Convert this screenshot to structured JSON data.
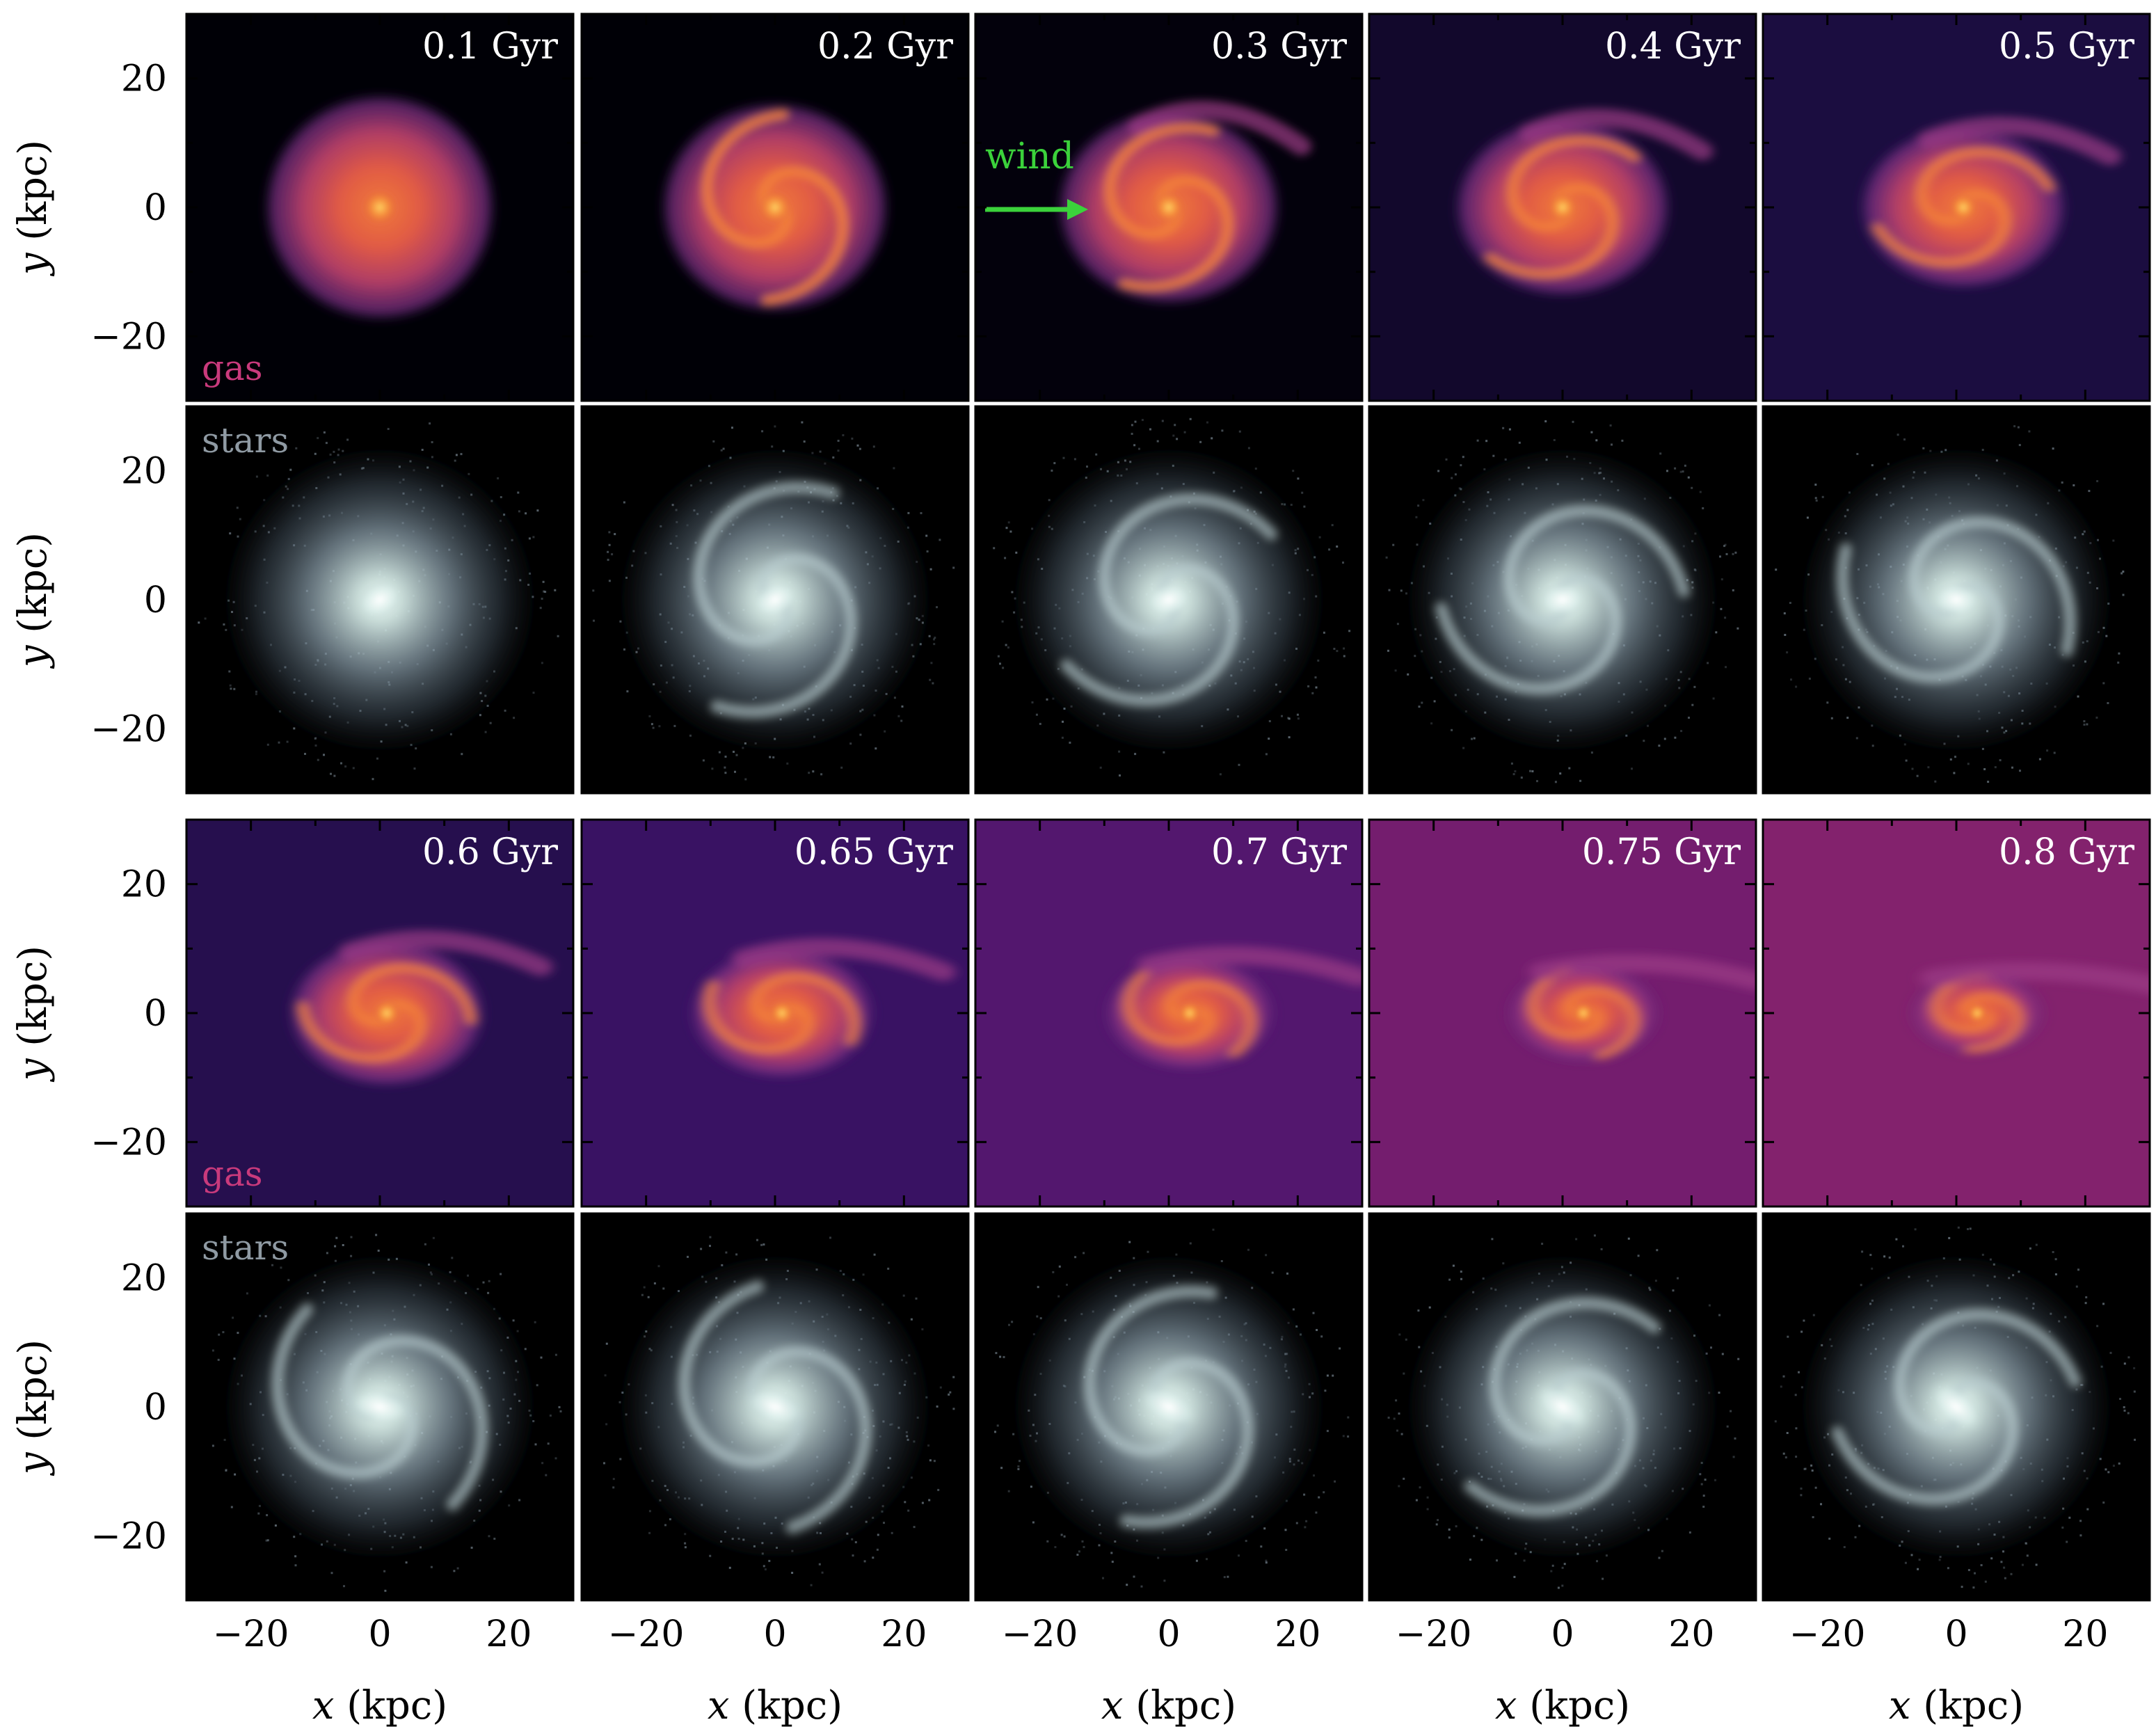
{
  "figure": {
    "axes": {
      "xlabel_var": "x",
      "xlabel_unit": "(kpc)",
      "ylabel_var": "y",
      "ylabel_unit": "(kpc)",
      "tick_values": [
        -20,
        0,
        20
      ],
      "tick_labels": [
        "−20",
        "0",
        "20"
      ],
      "range": [
        -30,
        30
      ]
    },
    "labels": {
      "gas": "gas",
      "stars": "stars",
      "wind": "wind"
    },
    "colors": {
      "gas_label": "#c93a7c",
      "stars_label": "#8f9aa3",
      "wind": "#3bd23b",
      "time_label": "#ffffff"
    },
    "blocks": [
      {
        "times": [
          "0.1 Gyr",
          "0.2 Gyr",
          "0.3 Gyr",
          "0.4 Gyr",
          "0.5 Gyr"
        ],
        "gas_background_levels": [
          0.0,
          0.0,
          0.02,
          0.12,
          0.18
        ]
      },
      {
        "times": [
          "0.6 Gyr",
          "0.65 Gyr",
          "0.7 Gyr",
          "0.75 Gyr",
          "0.8 Gyr"
        ],
        "gas_background_levels": [
          0.25,
          0.38,
          0.52,
          0.68,
          0.78
        ]
      }
    ]
  }
}
